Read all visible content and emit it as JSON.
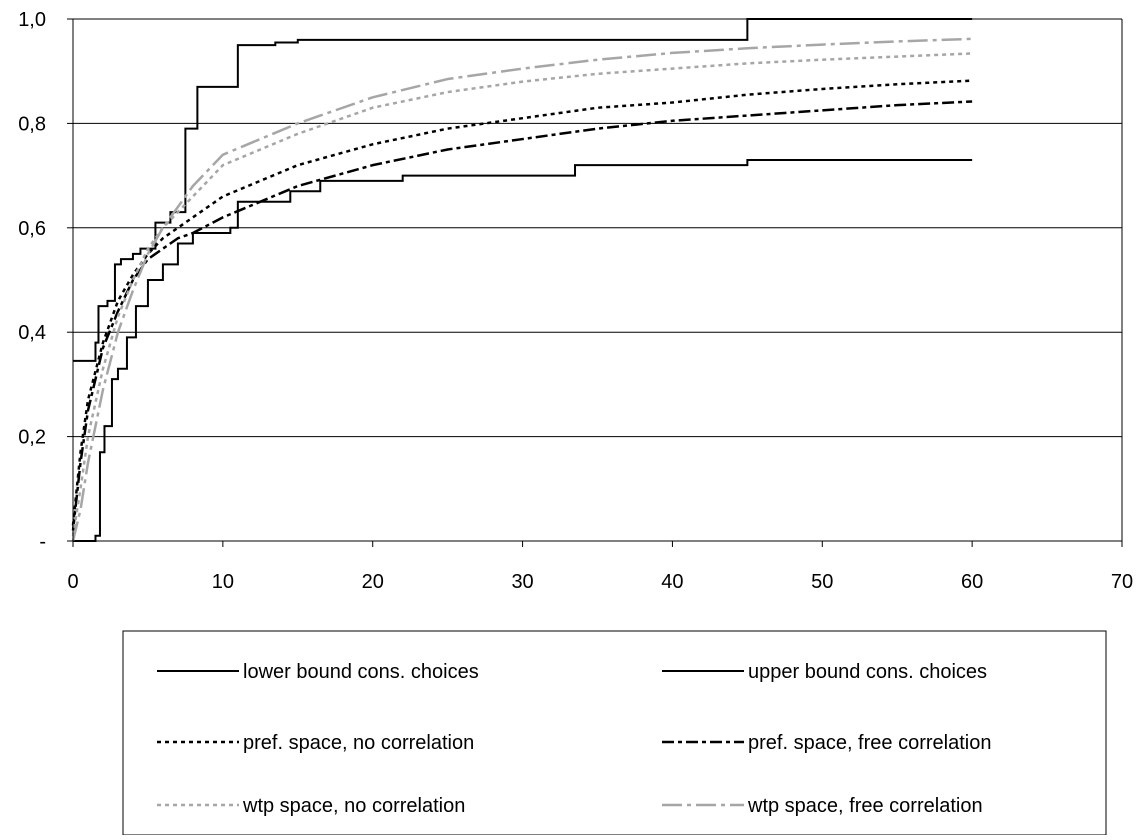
{
  "chart_data": {
    "type": "line",
    "title": "",
    "xlabel": "",
    "ylabel": "",
    "xlim": [
      0,
      70
    ],
    "ylim": [
      0,
      1
    ],
    "x_ticks": [
      0,
      10,
      20,
      30,
      40,
      50,
      60,
      70
    ],
    "x_tick_labels": [
      "0",
      "10",
      "20",
      "30",
      "40",
      "50",
      "60",
      "70"
    ],
    "y_ticks": [
      0,
      0.2,
      0.4,
      0.6,
      0.8,
      1.0
    ],
    "y_tick_labels": [
      "-",
      "0,2",
      "0,4",
      "0,6",
      "0,8",
      "1,0"
    ],
    "grid": "horizontal",
    "legend_position": "bottom",
    "series": [
      {
        "name": "lower bound cons. choices",
        "color": "#000000",
        "style": "solid",
        "step": true,
        "points": [
          [
            0,
            0
          ],
          [
            1.5,
            0
          ],
          [
            1.5,
            0.01
          ],
          [
            1.8,
            0.01
          ],
          [
            1.8,
            0.17
          ],
          [
            2.1,
            0.17
          ],
          [
            2.1,
            0.22
          ],
          [
            2.6,
            0.22
          ],
          [
            2.6,
            0.31
          ],
          [
            3,
            0.31
          ],
          [
            3,
            0.33
          ],
          [
            3.6,
            0.33
          ],
          [
            3.6,
            0.39
          ],
          [
            4.2,
            0.39
          ],
          [
            4.2,
            0.45
          ],
          [
            5,
            0.45
          ],
          [
            5,
            0.5
          ],
          [
            6,
            0.5
          ],
          [
            6,
            0.53
          ],
          [
            7,
            0.53
          ],
          [
            7,
            0.57
          ],
          [
            8,
            0.57
          ],
          [
            8,
            0.59
          ],
          [
            9,
            0.59
          ],
          [
            9,
            0.59
          ],
          [
            10.5,
            0.59
          ],
          [
            10.5,
            0.6
          ],
          [
            11,
            0.6
          ],
          [
            11,
            0.65
          ],
          [
            14.5,
            0.65
          ],
          [
            14.5,
            0.67
          ],
          [
            16.5,
            0.67
          ],
          [
            16.5,
            0.69
          ],
          [
            22,
            0.69
          ],
          [
            22,
            0.7
          ],
          [
            33.5,
            0.7
          ],
          [
            33.5,
            0.72
          ],
          [
            45,
            0.72
          ],
          [
            45,
            0.73
          ],
          [
            60,
            0.73
          ]
        ]
      },
      {
        "name": "upper bound cons. choices",
        "color": "#000000",
        "style": "solid",
        "step": true,
        "points": [
          [
            0,
            0.345
          ],
          [
            1.5,
            0.345
          ],
          [
            1.5,
            0.38
          ],
          [
            1.7,
            0.38
          ],
          [
            1.7,
            0.45
          ],
          [
            2.3,
            0.45
          ],
          [
            2.3,
            0.46
          ],
          [
            2.8,
            0.46
          ],
          [
            2.8,
            0.53
          ],
          [
            3.2,
            0.53
          ],
          [
            3.2,
            0.54
          ],
          [
            4,
            0.54
          ],
          [
            4,
            0.55
          ],
          [
            4.5,
            0.55
          ],
          [
            4.5,
            0.56
          ],
          [
            5.5,
            0.56
          ],
          [
            5.5,
            0.61
          ],
          [
            6.5,
            0.61
          ],
          [
            6.5,
            0.63
          ],
          [
            7.5,
            0.63
          ],
          [
            7.5,
            0.79
          ],
          [
            8.3,
            0.79
          ],
          [
            8.3,
            0.87
          ],
          [
            11,
            0.87
          ],
          [
            11,
            0.95
          ],
          [
            13.5,
            0.95
          ],
          [
            13.5,
            0.955
          ],
          [
            15,
            0.955
          ],
          [
            15,
            0.96
          ],
          [
            45,
            0.96
          ],
          [
            45,
            1.0
          ],
          [
            60,
            1.0
          ]
        ]
      },
      {
        "name": "pref. space, no correlation",
        "color": "#000000",
        "style": "dotted",
        "step": false,
        "points": [
          [
            0,
            0.03
          ],
          [
            0.5,
            0.17
          ],
          [
            1,
            0.27
          ],
          [
            2,
            0.38
          ],
          [
            3,
            0.46
          ],
          [
            4,
            0.51
          ],
          [
            5,
            0.55
          ],
          [
            6,
            0.58
          ],
          [
            7,
            0.6
          ],
          [
            8,
            0.62
          ],
          [
            10,
            0.66
          ],
          [
            15,
            0.72
          ],
          [
            20,
            0.76
          ],
          [
            25,
            0.79
          ],
          [
            30,
            0.81
          ],
          [
            35,
            0.83
          ],
          [
            40,
            0.84
          ],
          [
            45,
            0.855
          ],
          [
            50,
            0.866
          ],
          [
            55,
            0.875
          ],
          [
            60,
            0.882
          ]
        ]
      },
      {
        "name": "pref. space, free correlation",
        "color": "#000000",
        "style": "dash-dot",
        "step": false,
        "points": [
          [
            0,
            0.02
          ],
          [
            0.5,
            0.15
          ],
          [
            1,
            0.25
          ],
          [
            2,
            0.37
          ],
          [
            3,
            0.44
          ],
          [
            4,
            0.5
          ],
          [
            5,
            0.54
          ],
          [
            6,
            0.56
          ],
          [
            7,
            0.58
          ],
          [
            8,
            0.59
          ],
          [
            10,
            0.62
          ],
          [
            15,
            0.68
          ],
          [
            20,
            0.72
          ],
          [
            25,
            0.75
          ],
          [
            30,
            0.77
          ],
          [
            35,
            0.79
          ],
          [
            40,
            0.805
          ],
          [
            45,
            0.815
          ],
          [
            50,
            0.825
          ],
          [
            55,
            0.835
          ],
          [
            60,
            0.842
          ]
        ]
      },
      {
        "name": "wtp space, no correlation",
        "color": "#a6a6a6",
        "style": "dotted",
        "step": false,
        "points": [
          [
            0,
            0.01
          ],
          [
            0.5,
            0.1
          ],
          [
            1,
            0.2
          ],
          [
            2,
            0.33
          ],
          [
            3,
            0.43
          ],
          [
            4,
            0.5
          ],
          [
            5,
            0.56
          ],
          [
            6,
            0.6
          ],
          [
            7,
            0.63
          ],
          [
            8,
            0.66
          ],
          [
            10,
            0.72
          ],
          [
            15,
            0.78
          ],
          [
            20,
            0.83
          ],
          [
            25,
            0.86
          ],
          [
            30,
            0.88
          ],
          [
            35,
            0.895
          ],
          [
            40,
            0.905
          ],
          [
            45,
            0.915
          ],
          [
            50,
            0.922
          ],
          [
            55,
            0.928
          ],
          [
            60,
            0.934
          ]
        ]
      },
      {
        "name": "wtp space, free correlation",
        "color": "#a6a6a6",
        "style": "long-dash-dot",
        "step": false,
        "points": [
          [
            0,
            0
          ],
          [
            0.5,
            0.06
          ],
          [
            1,
            0.15
          ],
          [
            2,
            0.29
          ],
          [
            3,
            0.4
          ],
          [
            4,
            0.48
          ],
          [
            5,
            0.55
          ],
          [
            6,
            0.6
          ],
          [
            7,
            0.64
          ],
          [
            8,
            0.68
          ],
          [
            10,
            0.74
          ],
          [
            15,
            0.8
          ],
          [
            20,
            0.85
          ],
          [
            25,
            0.885
          ],
          [
            30,
            0.905
          ],
          [
            35,
            0.922
          ],
          [
            40,
            0.935
          ],
          [
            45,
            0.944
          ],
          [
            50,
            0.951
          ],
          [
            55,
            0.957
          ],
          [
            60,
            0.962
          ]
        ]
      }
    ]
  }
}
